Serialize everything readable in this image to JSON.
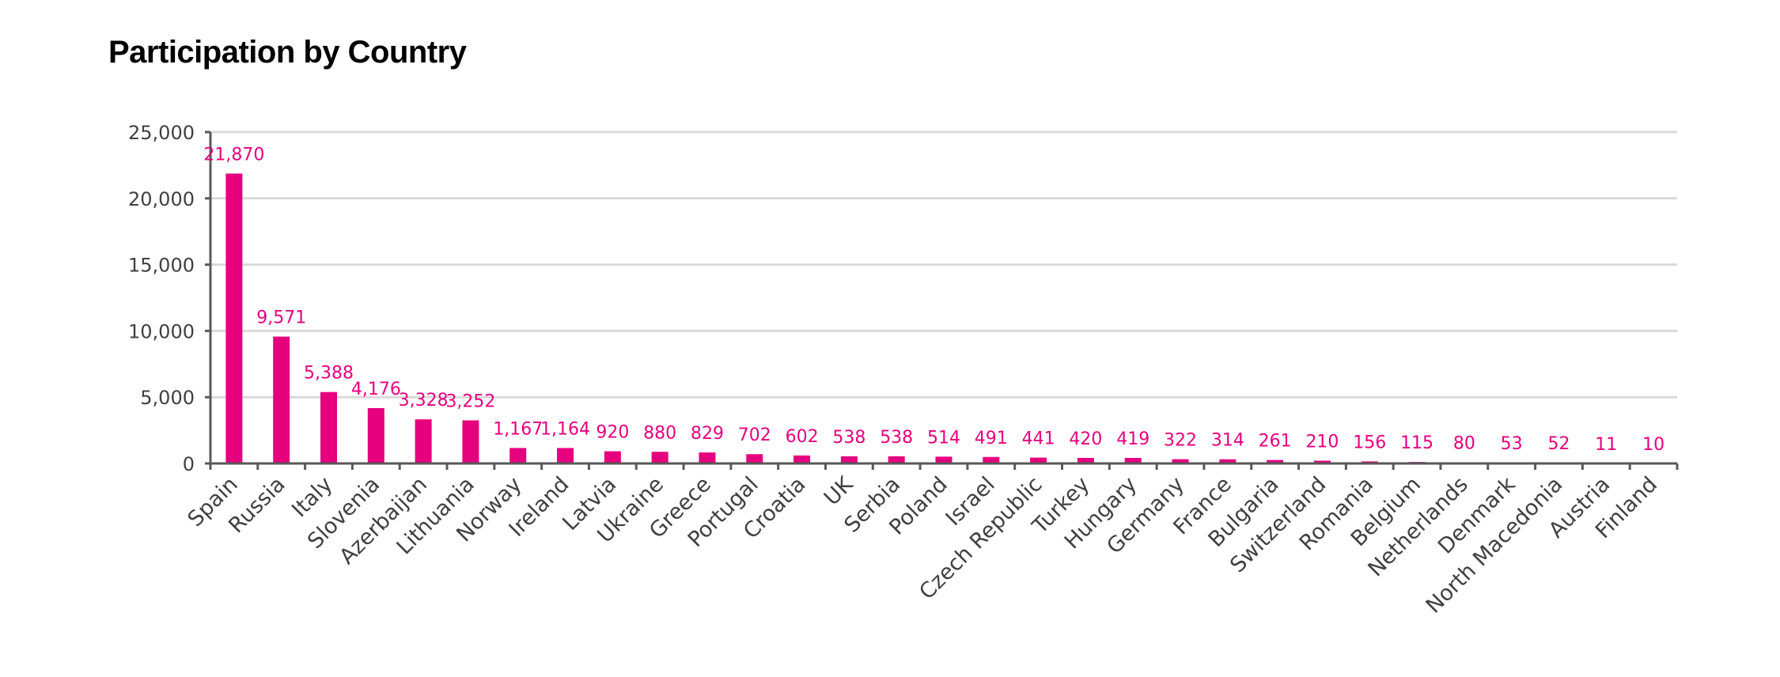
{
  "chart_data": {
    "type": "bar",
    "title": "Participation by Country",
    "xlabel": "",
    "ylabel": "",
    "ylim": [
      0,
      25000
    ],
    "yticks": [
      0,
      5000,
      10000,
      15000,
      20000,
      25000
    ],
    "ytick_labels": [
      "0",
      "5,000",
      "10,000",
      "15,000",
      "20,000",
      "25,000"
    ],
    "grid": true,
    "legend": "none",
    "bar_color": "#e6007e",
    "categories": [
      "Spain",
      "Russia",
      "Italy",
      "Slovenia",
      "Azerbaijan",
      "Lithuania",
      "Norway",
      "Ireland",
      "Latvia",
      "Ukraine",
      "Greece",
      "Portugal",
      "Croatia",
      "UK",
      "Serbia",
      "Poland",
      "Israel",
      "Czech Republic",
      "Turkey",
      "Hungary",
      "Germany",
      "France",
      "Bulgaria",
      "Switzerland",
      "Romania",
      "Belgium",
      "Netherlands",
      "Denmark",
      "North Macedonia",
      "Austria",
      "Finland"
    ],
    "values": [
      21870,
      9571,
      5388,
      4176,
      3328,
      3252,
      1167,
      1164,
      920,
      880,
      829,
      702,
      602,
      538,
      538,
      514,
      491,
      441,
      420,
      419,
      322,
      314,
      261,
      210,
      156,
      115,
      80,
      53,
      52,
      11,
      10
    ],
    "data_labels": [
      "21,870",
      "9,571",
      "5,388",
      "4,176",
      "3,328",
      "3,252",
      "1,167",
      "1,164",
      "920",
      "880",
      "829",
      "702",
      "602",
      "538",
      "538",
      "514",
      "491",
      "441",
      "420",
      "419",
      "322",
      "314",
      "261",
      "210",
      "156",
      "115",
      "80",
      "53",
      "52",
      "11",
      "10"
    ]
  }
}
